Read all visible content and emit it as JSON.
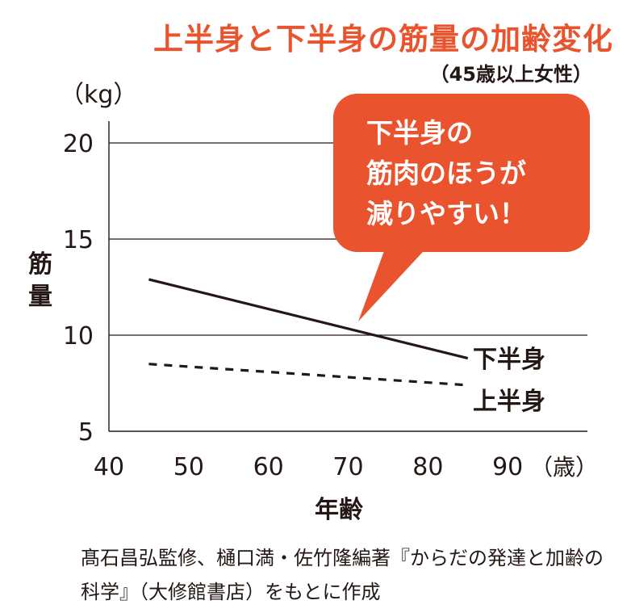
{
  "header": {
    "title": "上半身と下半身の筋量の加齢変化",
    "subtitle": "（45歳以上女性）"
  },
  "annotation": {
    "callout": "下半身の\n筋肉のほうが\n減りやすい！"
  },
  "footer": {
    "source": "髙石昌弘監修、樋口満・佐竹隆編著『からだの発達と加齢の科学』（大修館書店）をもとに作成"
  },
  "colors": {
    "accent": "#E9532D",
    "text": "#231815",
    "grid": "#231815"
  },
  "chart_data": {
    "type": "line",
    "title": "上半身と下半身の筋量の加齢変化",
    "subtitle": "（45歳以上女性）",
    "xlabel": "年齢",
    "ylabel": "筋量",
    "y_unit": "（kg）",
    "x_unit": "（歳）",
    "xlim": [
      40,
      100
    ],
    "ylim": [
      5,
      21
    ],
    "x_ticks": [
      "40",
      "50",
      "60",
      "70",
      "80",
      "90"
    ],
    "y_ticks": [
      "5",
      "10",
      "15",
      "20"
    ],
    "grid": "horizontal",
    "series": [
      {
        "name": "下半身",
        "style": "solid",
        "x": [
          45,
          85
        ],
        "values": [
          12.9,
          8.8
        ]
      },
      {
        "name": "上半身",
        "style": "dashed",
        "x": [
          45,
          85
        ],
        "values": [
          8.5,
          7.4
        ]
      }
    ]
  }
}
